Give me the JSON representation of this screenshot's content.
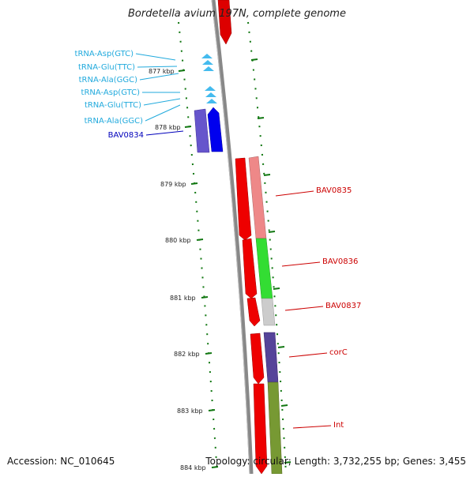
{
  "title": "Bordetella avium 197N, complete genome",
  "footer": {
    "accession": "Accession: NC_010645",
    "topology": "Topology: circular; Length: 3,732,255 bp; Genes: 3,455"
  },
  "colors": {
    "trna": "#22aadd",
    "trna_marker": "#44bbee",
    "blue_gene": "#0000cc",
    "red_gene": "#cc0000",
    "tick_green": "#117711",
    "backbone": "#888888"
  },
  "ticks": [
    {
      "label": "877 kbp"
    },
    {
      "label": "878 kbp"
    },
    {
      "label": "879 kbp"
    },
    {
      "label": "880 kbp"
    },
    {
      "label": "881 kbp"
    },
    {
      "label": "882 kbp"
    },
    {
      "label": "883 kbp"
    },
    {
      "label": "884 kbp"
    }
  ],
  "trna_labels": [
    "tRNA-Asp(GTC)",
    "tRNA-Glu(TTC)",
    "tRNA-Ala(GGC)",
    "tRNA-Asp(GTC)",
    "tRNA-Glu(TTC)",
    "tRNA-Ala(GGC)"
  ],
  "left_gene_label": "BAV0834",
  "right_gene_labels": [
    "BAV0835",
    "BAV0836",
    "BAV0837",
    "corC",
    "Int"
  ]
}
